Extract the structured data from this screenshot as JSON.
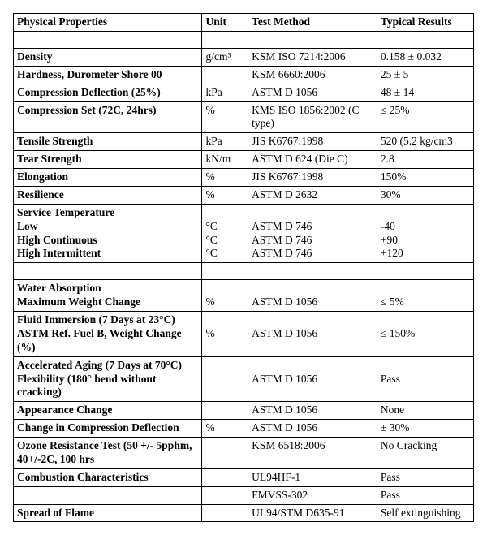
{
  "headers": {
    "prop": "Physical Properties",
    "unit": "Unit",
    "method": "Test Method",
    "result": "Typical Results"
  },
  "rows": {
    "density": {
      "p": "Density",
      "u": "g/cm³",
      "m": "KSM ISO 7214:2006",
      "r": "0.158 ± 0.032"
    },
    "hardness": {
      "p": "Hardness, Durometer Shore 00",
      "u": "",
      "m": "KSM 6660:2006",
      "r": "25 ± 5"
    },
    "compDefl": {
      "p": "Compression Deflection (25%)",
      "u": "kPa",
      "m": "ASTM D 1056",
      "r": "48 ± 14"
    },
    "compSet": {
      "p": "Compression Set (72C, 24hrs)",
      "u": "%",
      "m": "KMS ISO 1856:2002 (C type)",
      "r": "≤ 25%"
    },
    "tensile": {
      "p": "Tensile Strength",
      "u": "kPa",
      "m": "JIS K6767:1998",
      "r": "520 (5.2 kg/cm3"
    },
    "tear": {
      "p": "Tear Strength",
      "u": "kN/m",
      "m": "ASTM D 624 (Die C)",
      "r": "2.8"
    },
    "elong": {
      "p": "Elongation",
      "u": "%",
      "m": "JIS K6767:1998",
      "r": "150%"
    },
    "resil": {
      "p": "Resilience",
      "u": "%",
      "m": "ASTM D 2632",
      "r": "30%"
    },
    "svcTemp": {
      "title": "Service Temperature",
      "low": {
        "p": "Low",
        "u": "°C",
        "m": "ASTM D 746",
        "r": "-40"
      },
      "hc": {
        "p": "High Continuous",
        "u": "°C",
        "m": "ASTM D 746",
        "r": "+90"
      },
      "hi": {
        "p": "High Intermittent",
        "u": "°C",
        "m": "ASTM D 746",
        "r": "+120"
      }
    },
    "waterAbs": {
      "title": "Water Absorption",
      "sub": "Maximum Weight Change",
      "u": "%",
      "m": "ASTM D 1056",
      "r": "≤ 5%"
    },
    "fluid": {
      "l1": "Fluid Immersion (7 Days at 23°C)",
      "l2": "ASTM Ref. Fuel B, Weight Change (%)",
      "u": "%",
      "m": "ASTM D 1056",
      "r": "≤ 150%"
    },
    "aging": {
      "l1": "Accelerated Aging (7 Days at 70°C)",
      "l2": "Flexibility (180° bend without cracking)",
      "u": "",
      "m": "ASTM D 1056",
      "r": "Pass"
    },
    "appear": {
      "p": "Appearance Change",
      "u": "",
      "m": "ASTM D 1056",
      "r": "None"
    },
    "chgComp": {
      "p": "Change in Compression Deflection",
      "u": "%",
      "m": "ASTM D 1056",
      "r": "± 30%"
    },
    "ozone": {
      "p": "Ozone Resistance Test (50 +/- 5pphm, 40+/-2C, 100 hrs",
      "u": "",
      "m": "KSM 6518:2006",
      "r": "No Cracking"
    },
    "comb": {
      "title": "Combustion Characteristics",
      "m1": "UL94HF-1",
      "r1": "Pass",
      "m2": "FMVSS-302",
      "r2": "Pass"
    },
    "spread": {
      "p": "Spread of Flame",
      "u": "",
      "m": "UL94/STM D635-91",
      "r": "Self extinguishing"
    }
  }
}
